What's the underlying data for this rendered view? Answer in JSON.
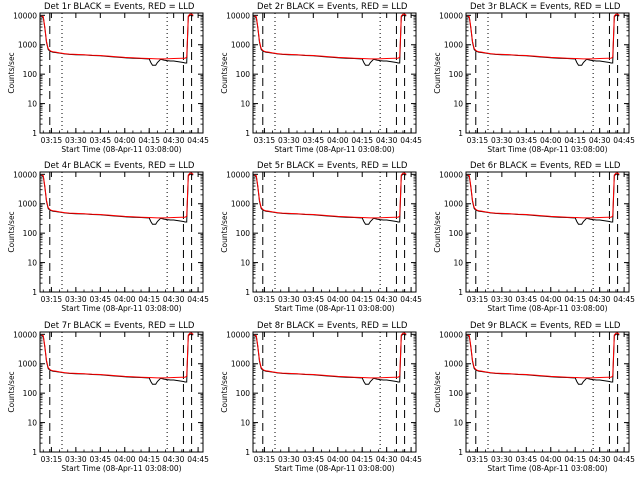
{
  "chart_data": [
    {
      "type": "line",
      "title": "Det 1r BLACK = Events, RED = LLD",
      "panel": 1
    },
    {
      "type": "line",
      "title": "Det 2r BLACK = Events, RED = LLD",
      "panel": 2
    },
    {
      "type": "line",
      "title": "Det 3r BLACK = Events, RED = LLD",
      "panel": 3
    },
    {
      "type": "line",
      "title": "Det 4r BLACK = Events, RED = LLD",
      "panel": 4
    },
    {
      "type": "line",
      "title": "Det 5r BLACK = Events, RED = LLD",
      "panel": 5
    },
    {
      "type": "line",
      "title": "Det 6r BLACK = Events, RED = LLD",
      "panel": 6
    },
    {
      "type": "line",
      "title": "Det 7r BLACK = Events, RED = LLD",
      "panel": 7
    },
    {
      "type": "line",
      "title": "Det 8r BLACK = Events, RED = LLD",
      "panel": 8
    },
    {
      "type": "line",
      "title": "Det 9r BLACK = Events, RED = LLD",
      "panel": 9
    }
  ],
  "shared": {
    "xlabel": "Start Time (08-Apr-11 03:08:00)",
    "ylabel": "Counts/sec",
    "x_ticks": [
      "03:15",
      "03:30",
      "03:45",
      "04:00",
      "04:15",
      "04:30",
      "04:45"
    ],
    "x_tick_minutes": [
      15,
      30,
      45,
      60,
      75,
      90,
      105
    ],
    "xlim_minutes": [
      8,
      108
    ],
    "y_scale": "log",
    "ylim": [
      1,
      12000
    ],
    "y_ticks": [
      "1",
      "10",
      "100",
      "1000",
      "10000"
    ],
    "y_tick_values": [
      1,
      10,
      100,
      1000,
      10000
    ],
    "series": [
      {
        "name": "Events",
        "color": "#000000"
      },
      {
        "name": "LLD",
        "color": "#ff0000"
      }
    ],
    "events_curve": {
      "x": [
        9,
        10,
        11,
        12,
        13,
        14,
        15,
        16,
        18,
        20,
        23,
        26,
        30,
        35,
        40,
        45,
        50,
        55,
        60,
        65,
        70,
        74,
        75,
        76,
        77,
        78,
        79,
        80,
        82,
        84,
        86,
        88,
        90,
        92,
        94,
        96,
        97,
        98,
        99,
        100,
        101,
        102
      ],
      "y": [
        9000,
        8500,
        3500,
        1200,
        700,
        600,
        580,
        560,
        540,
        520,
        490,
        470,
        460,
        450,
        430,
        420,
        400,
        380,
        360,
        350,
        340,
        330,
        330,
        250,
        200,
        200,
        200,
        250,
        320,
        300,
        290,
        280,
        280,
        270,
        260,
        250,
        240,
        240,
        9000,
        10000,
        10000,
        9500
      ]
    },
    "lld_curve": {
      "x": [
        9,
        10,
        11,
        12,
        13,
        14,
        15,
        16,
        18,
        20,
        23,
        26,
        30,
        35,
        40,
        45,
        50,
        55,
        60,
        65,
        70,
        75,
        80,
        85,
        90,
        95,
        97,
        98,
        99,
        100,
        101,
        102
      ],
      "y": [
        9500,
        9000,
        3800,
        1300,
        760,
        640,
        600,
        580,
        560,
        530,
        500,
        480,
        470,
        460,
        440,
        430,
        410,
        390,
        370,
        360,
        350,
        340,
        330,
        330,
        340,
        350,
        350,
        380,
        9500,
        11000,
        11000,
        10000
      ]
    },
    "dashed_lines_minutes": [
      14,
      96,
      101
    ],
    "dotted_lines_minutes": [
      21.5,
      86
    ]
  }
}
